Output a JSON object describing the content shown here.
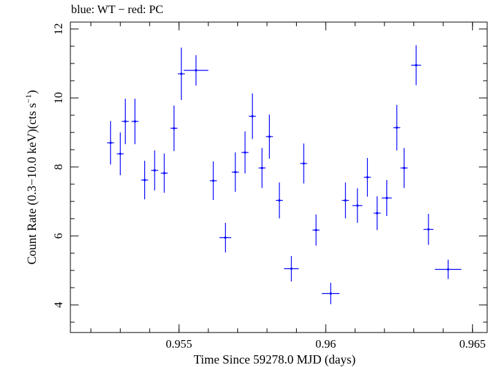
{
  "chart_data": {
    "type": "scatter",
    "title": "blue: WT − red: PC",
    "xlabel": "Time Since 59278.0 MJD (days)",
    "ylabel_main": "Count Rate (0.3−10.0 keV)(cts s",
    "ylabel_sup": "−1",
    "ylabel_end": ")",
    "xlim": [
      0.9513,
      0.9655
    ],
    "ylim": [
      3.2,
      12.2
    ],
    "x_ticks": [
      {
        "value": 0.955,
        "label": "0.955"
      },
      {
        "value": 0.96,
        "label": "0.96"
      },
      {
        "value": 0.965,
        "label": "0.965"
      }
    ],
    "y_ticks": [
      {
        "value": 4,
        "label": "4"
      },
      {
        "value": 6,
        "label": "6"
      },
      {
        "value": 8,
        "label": "8"
      },
      {
        "value": 10,
        "label": "10"
      },
      {
        "value": 12,
        "label": "12"
      }
    ],
    "x_minor_step": 0.001,
    "y_minor_step": 0.5,
    "series": [
      {
        "color": "#0000ff",
        "points": [
          {
            "x": 0.95267,
            "xerr": 0.00012,
            "y": 8.7,
            "yerr": 0.63
          },
          {
            "x": 0.953,
            "xerr": 0.00012,
            "y": 8.38,
            "yerr": 0.62
          },
          {
            "x": 0.95317,
            "xerr": 0.00012,
            "y": 9.32,
            "yerr": 0.66
          },
          {
            "x": 0.9535,
            "xerr": 0.00012,
            "y": 9.32,
            "yerr": 0.66
          },
          {
            "x": 0.95383,
            "xerr": 0.00012,
            "y": 7.62,
            "yerr": 0.56
          },
          {
            "x": 0.95417,
            "xerr": 0.00012,
            "y": 7.9,
            "yerr": 0.58
          },
          {
            "x": 0.9545,
            "xerr": 0.00012,
            "y": 7.82,
            "yerr": 0.57
          },
          {
            "x": 0.95483,
            "xerr": 0.00012,
            "y": 9.12,
            "yerr": 0.66
          },
          {
            "x": 0.95508,
            "xerr": 0.00012,
            "y": 10.7,
            "yerr": 0.76
          },
          {
            "x": 0.95558,
            "xerr": 0.00042,
            "y": 10.8,
            "yerr": 0.44
          },
          {
            "x": 0.95617,
            "xerr": 0.00012,
            "y": 7.6,
            "yerr": 0.56
          },
          {
            "x": 0.95658,
            "xerr": 0.0002,
            "y": 5.95,
            "yerr": 0.43
          },
          {
            "x": 0.95692,
            "xerr": 0.00012,
            "y": 7.85,
            "yerr": 0.57
          },
          {
            "x": 0.95725,
            "xerr": 0.00012,
            "y": 8.42,
            "yerr": 0.61
          },
          {
            "x": 0.9575,
            "xerr": 0.00012,
            "y": 9.47,
            "yerr": 0.66
          },
          {
            "x": 0.95783,
            "xerr": 0.00012,
            "y": 7.97,
            "yerr": 0.58
          },
          {
            "x": 0.95808,
            "xerr": 0.00012,
            "y": 8.88,
            "yerr": 0.64
          },
          {
            "x": 0.95842,
            "xerr": 0.00012,
            "y": 7.03,
            "yerr": 0.52
          },
          {
            "x": 0.95883,
            "xerr": 0.00025,
            "y": 5.05,
            "yerr": 0.37
          },
          {
            "x": 0.95925,
            "xerr": 0.00012,
            "y": 8.1,
            "yerr": 0.58
          },
          {
            "x": 0.95967,
            "xerr": 0.00012,
            "y": 6.17,
            "yerr": 0.45
          },
          {
            "x": 0.96017,
            "xerr": 0.0003,
            "y": 4.33,
            "yerr": 0.31
          },
          {
            "x": 0.96067,
            "xerr": 0.00012,
            "y": 7.03,
            "yerr": 0.52
          },
          {
            "x": 0.96108,
            "xerr": 0.00017,
            "y": 6.88,
            "yerr": 0.5
          },
          {
            "x": 0.96142,
            "xerr": 0.00012,
            "y": 7.7,
            "yerr": 0.56
          },
          {
            "x": 0.96175,
            "xerr": 0.00012,
            "y": 6.66,
            "yerr": 0.49
          },
          {
            "x": 0.96208,
            "xerr": 0.00017,
            "y": 7.1,
            "yerr": 0.52
          },
          {
            "x": 0.96242,
            "xerr": 0.00012,
            "y": 9.14,
            "yerr": 0.66
          },
          {
            "x": 0.96267,
            "xerr": 0.00012,
            "y": 7.97,
            "yerr": 0.58
          },
          {
            "x": 0.96308,
            "xerr": 0.00017,
            "y": 10.95,
            "yerr": 0.58
          },
          {
            "x": 0.9635,
            "xerr": 0.00017,
            "y": 6.19,
            "yerr": 0.45
          },
          {
            "x": 0.96417,
            "xerr": 0.00045,
            "y": 5.03,
            "yerr": 0.28
          }
        ]
      }
    ]
  }
}
